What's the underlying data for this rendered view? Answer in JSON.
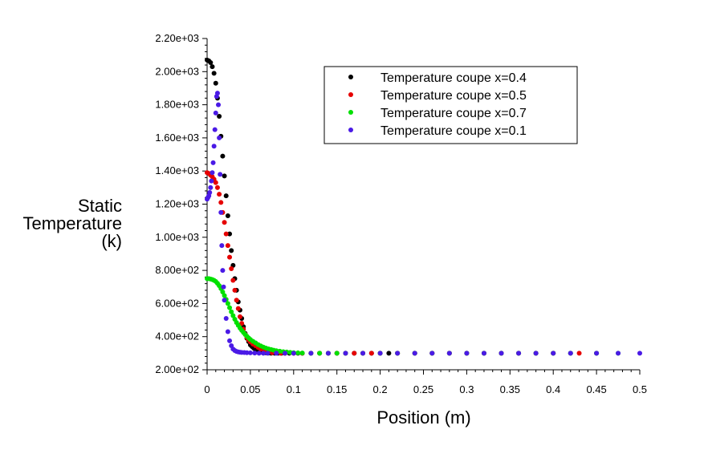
{
  "chart_data": {
    "type": "scatter",
    "title": "",
    "xlabel": "Position (m)",
    "ylabel_lines": [
      "Static",
      "Temperature",
      "(k)"
    ],
    "xlim": [
      0,
      0.5
    ],
    "ylim": [
      200,
      2200
    ],
    "x_ticks": [
      0,
      0.05,
      0.1,
      0.15,
      0.2,
      0.25,
      0.3,
      0.35,
      0.4,
      0.45,
      0.5
    ],
    "x_tick_labels": [
      "0",
      "0.05",
      "0.1",
      "0.15",
      "0.2",
      "0.25",
      "0.3",
      "0.35",
      "0.4",
      "0.45",
      "0.5"
    ],
    "y_ticks": [
      200,
      400,
      600,
      800,
      1000,
      1200,
      1400,
      1600,
      1800,
      2000,
      2200
    ],
    "y_tick_labels": [
      "2.00e+02",
      "4.00e+02",
      "6.00e+02",
      "8.00e+02",
      "1.00e+03",
      "1.20e+03",
      "1.40e+03",
      "1.60e+03",
      "1.80e+03",
      "2.00e+03",
      "2.20e+03"
    ],
    "grid": false,
    "legend_position": "top-right",
    "series": [
      {
        "name": "Temperature coupe x=0.4",
        "color": "#000000",
        "x": [
          0,
          0.002,
          0.004,
          0.006,
          0.008,
          0.01,
          0.012,
          0.014,
          0.016,
          0.018,
          0.02,
          0.022,
          0.024,
          0.026,
          0.028,
          0.03,
          0.032,
          0.034,
          0.036,
          0.038,
          0.04,
          0.042,
          0.044,
          0.046,
          0.048,
          0.05,
          0.052,
          0.054,
          0.056,
          0.058,
          0.06,
          0.062,
          0.065,
          0.068,
          0.071,
          0.074,
          0.078,
          0.082,
          0.086,
          0.09,
          0.095,
          0.1,
          0.105,
          0.11,
          0.12,
          0.13,
          0.14,
          0.15,
          0.16,
          0.17,
          0.18,
          0.19,
          0.2,
          0.21,
          0.22,
          0.24,
          0.26,
          0.28,
          0.3,
          0.32,
          0.34,
          0.36,
          0.38,
          0.4,
          0.42,
          0.45
        ],
        "y": [
          2070,
          2065,
          2055,
          2030,
          1990,
          1930,
          1840,
          1730,
          1610,
          1490,
          1370,
          1250,
          1130,
          1020,
          920,
          830,
          750,
          680,
          610,
          560,
          510,
          460,
          420,
          390,
          370,
          350,
          340,
          330,
          320,
          315,
          310,
          306,
          303,
          302,
          301,
          300,
          300,
          300,
          300,
          300,
          300,
          300,
          300,
          300,
          300,
          300,
          300,
          300,
          300,
          300,
          300,
          300,
          300,
          300,
          300,
          300,
          300,
          300,
          300,
          300,
          300,
          300,
          300,
          300,
          300,
          300
        ]
      },
      {
        "name": "Temperature coupe x=0.5",
        "color": "#e60000",
        "x": [
          0,
          0.002,
          0.004,
          0.006,
          0.008,
          0.01,
          0.012,
          0.014,
          0.016,
          0.018,
          0.02,
          0.022,
          0.024,
          0.026,
          0.028,
          0.03,
          0.032,
          0.034,
          0.036,
          0.038,
          0.04,
          0.042,
          0.044,
          0.046,
          0.048,
          0.05,
          0.053,
          0.056,
          0.059,
          0.062,
          0.066,
          0.07,
          0.075,
          0.08,
          0.085,
          0.09,
          0.1,
          0.11,
          0.12,
          0.13,
          0.14,
          0.15,
          0.16,
          0.17,
          0.18,
          0.19,
          0.2,
          0.22,
          0.24,
          0.26,
          0.28,
          0.3,
          0.32,
          0.34,
          0.36,
          0.38,
          0.4,
          0.43
        ],
        "y": [
          1390,
          1385,
          1375,
          1365,
          1350,
          1330,
          1300,
          1260,
          1210,
          1150,
          1090,
          1020,
          950,
          880,
          810,
          740,
          680,
          620,
          570,
          520,
          480,
          445,
          415,
          395,
          380,
          368,
          355,
          345,
          335,
          325,
          315,
          308,
          303,
          301,
          300,
          300,
          300,
          300,
          300,
          300,
          300,
          300,
          300,
          300,
          300,
          300,
          300,
          300,
          300,
          300,
          300,
          300,
          300,
          300,
          300,
          300,
          300,
          300
        ]
      },
      {
        "name": "Temperature coupe x=0.7",
        "color": "#00e000",
        "x": [
          0,
          0.002,
          0.004,
          0.006,
          0.008,
          0.01,
          0.012,
          0.014,
          0.016,
          0.018,
          0.02,
          0.022,
          0.024,
          0.026,
          0.028,
          0.03,
          0.032,
          0.034,
          0.036,
          0.038,
          0.04,
          0.042,
          0.044,
          0.046,
          0.048,
          0.05,
          0.053,
          0.056,
          0.059,
          0.062,
          0.065,
          0.068,
          0.071,
          0.074,
          0.077,
          0.08,
          0.084,
          0.088,
          0.092,
          0.096,
          0.1,
          0.105,
          0.11,
          0.12,
          0.13,
          0.14,
          0.15,
          0.16,
          0.18,
          0.2,
          0.22,
          0.24,
          0.26,
          0.28,
          0.3,
          0.32,
          0.34,
          0.36,
          0.38,
          0.4,
          0.42,
          0.45,
          0.475
        ],
        "y": [
          750,
          750,
          748,
          745,
          740,
          733,
          722,
          708,
          690,
          670,
          648,
          625,
          600,
          575,
          550,
          527,
          505,
          485,
          468,
          452,
          438,
          425,
          413,
          402,
          392,
          383,
          372,
          362,
          352,
          344,
          337,
          331,
          326,
          322,
          318,
          315,
          312,
          309,
          307,
          305,
          303,
          302,
          301,
          300,
          300,
          300,
          300,
          300,
          300,
          300,
          300,
          300,
          300,
          300,
          300,
          300,
          300,
          300,
          300,
          300,
          300,
          300,
          300
        ]
      },
      {
        "name": "Temperature coupe x=0.1",
        "color": "#4a1ae6",
        "x": [
          0,
          0.001,
          0.002,
          0.003,
          0.004,
          0.005,
          0.006,
          0.007,
          0.008,
          0.009,
          0.01,
          0.011,
          0.012,
          0.013,
          0.014,
          0.015,
          0.016,
          0.017,
          0.018,
          0.019,
          0.02,
          0.022,
          0.024,
          0.026,
          0.028,
          0.03,
          0.032,
          0.034,
          0.036,
          0.038,
          0.04,
          0.043,
          0.046,
          0.05,
          0.055,
          0.06,
          0.065,
          0.07,
          0.08,
          0.09,
          0.1,
          0.12,
          0.14,
          0.16,
          0.18,
          0.2,
          0.22,
          0.24,
          0.26,
          0.28,
          0.3,
          0.32,
          0.34,
          0.36,
          0.38,
          0.4,
          0.42,
          0.45,
          0.475,
          0.5
        ],
        "y": [
          1230,
          1240,
          1250,
          1270,
          1300,
          1340,
          1390,
          1450,
          1550,
          1650,
          1750,
          1850,
          1870,
          1800,
          1600,
          1380,
          1150,
          950,
          800,
          700,
          620,
          510,
          430,
          375,
          345,
          325,
          316,
          311,
          308,
          306,
          305,
          304,
          303,
          302,
          301,
          300,
          300,
          300,
          300,
          300,
          300,
          300,
          300,
          300,
          300,
          300,
          300,
          300,
          300,
          300,
          300,
          300,
          300,
          300,
          300,
          300,
          300,
          300,
          300,
          300
        ]
      }
    ]
  }
}
